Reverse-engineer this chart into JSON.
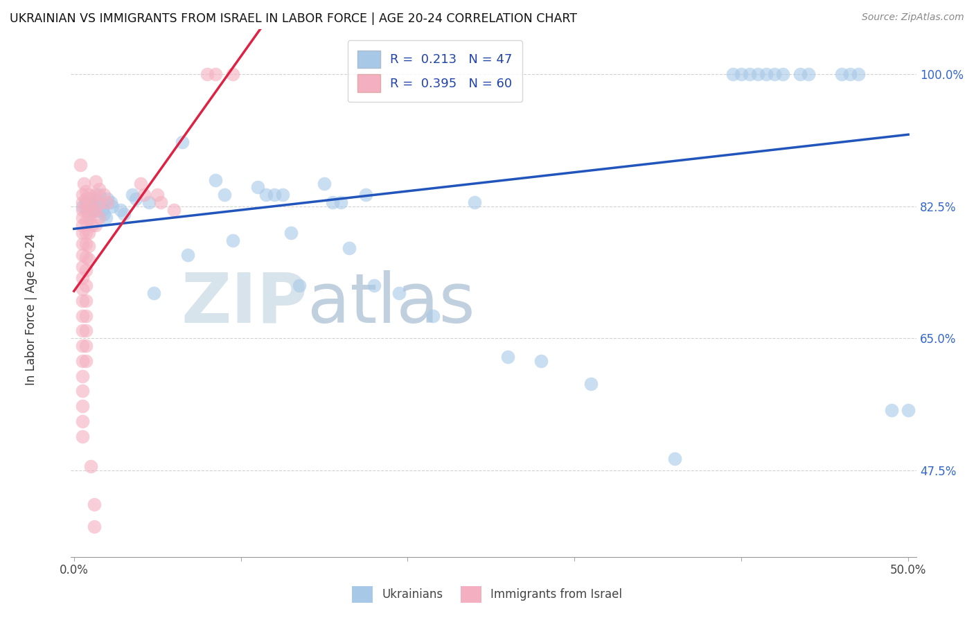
{
  "title": "UKRAINIAN VS IMMIGRANTS FROM ISRAEL IN LABOR FORCE | AGE 20-24 CORRELATION CHART",
  "source": "Source: ZipAtlas.com",
  "ylabel": "In Labor Force | Age 20-24",
  "yticks": [
    0.475,
    0.65,
    0.825,
    1.0
  ],
  "ytick_labels": [
    "47.5%",
    "65.0%",
    "82.5%",
    "100.0%"
  ],
  "xrange": [
    -0.002,
    0.505
  ],
  "yrange": [
    0.36,
    1.06
  ],
  "blue_color": "#a8c8e8",
  "pink_color": "#f4b0c0",
  "blue_line_color": "#2255bb",
  "pink_line_color": "#dd2244",
  "watermark_zip_color": "#d0dde8",
  "watermark_atlas_color": "#c8d8e8",
  "blue_scatter": [
    [
      0.005,
      0.825
    ],
    [
      0.007,
      0.83
    ],
    [
      0.008,
      0.82
    ],
    [
      0.009,
      0.815
    ],
    [
      0.01,
      0.835
    ],
    [
      0.011,
      0.828
    ],
    [
      0.012,
      0.822
    ],
    [
      0.013,
      0.818
    ],
    [
      0.014,
      0.832
    ],
    [
      0.015,
      0.84
    ],
    [
      0.016,
      0.826
    ],
    [
      0.017,
      0.82
    ],
    [
      0.018,
      0.815
    ],
    [
      0.019,
      0.81
    ],
    [
      0.02,
      0.835
    ],
    [
      0.022,
      0.83
    ],
    [
      0.023,
      0.825
    ],
    [
      0.028,
      0.82
    ],
    [
      0.03,
      0.815
    ],
    [
      0.035,
      0.84
    ],
    [
      0.037,
      0.835
    ],
    [
      0.045,
      0.83
    ],
    [
      0.048,
      0.71
    ],
    [
      0.065,
      0.91
    ],
    [
      0.068,
      0.76
    ],
    [
      0.085,
      0.86
    ],
    [
      0.09,
      0.84
    ],
    [
      0.095,
      0.78
    ],
    [
      0.11,
      0.85
    ],
    [
      0.115,
      0.84
    ],
    [
      0.12,
      0.84
    ],
    [
      0.125,
      0.84
    ],
    [
      0.13,
      0.79
    ],
    [
      0.135,
      0.72
    ],
    [
      0.15,
      0.855
    ],
    [
      0.155,
      0.83
    ],
    [
      0.16,
      0.83
    ],
    [
      0.165,
      0.77
    ],
    [
      0.175,
      0.84
    ],
    [
      0.18,
      0.72
    ],
    [
      0.195,
      0.71
    ],
    [
      0.215,
      0.68
    ],
    [
      0.24,
      0.83
    ],
    [
      0.26,
      0.625
    ],
    [
      0.28,
      0.62
    ],
    [
      0.31,
      0.59
    ],
    [
      0.36,
      0.49
    ],
    [
      0.395,
      1.0
    ],
    [
      0.4,
      1.0
    ],
    [
      0.405,
      1.0
    ],
    [
      0.41,
      1.0
    ],
    [
      0.415,
      1.0
    ],
    [
      0.42,
      1.0
    ],
    [
      0.425,
      1.0
    ],
    [
      0.435,
      1.0
    ],
    [
      0.44,
      1.0
    ],
    [
      0.46,
      1.0
    ],
    [
      0.465,
      1.0
    ],
    [
      0.47,
      1.0
    ],
    [
      0.49,
      0.555
    ],
    [
      0.5,
      0.555
    ]
  ],
  "pink_scatter": [
    [
      0.004,
      0.88
    ],
    [
      0.005,
      0.84
    ],
    [
      0.005,
      0.83
    ],
    [
      0.005,
      0.82
    ],
    [
      0.005,
      0.81
    ],
    [
      0.005,
      0.8
    ],
    [
      0.005,
      0.79
    ],
    [
      0.005,
      0.775
    ],
    [
      0.005,
      0.76
    ],
    [
      0.005,
      0.745
    ],
    [
      0.005,
      0.73
    ],
    [
      0.005,
      0.715
    ],
    [
      0.005,
      0.7
    ],
    [
      0.005,
      0.68
    ],
    [
      0.005,
      0.66
    ],
    [
      0.005,
      0.64
    ],
    [
      0.005,
      0.62
    ],
    [
      0.005,
      0.6
    ],
    [
      0.005,
      0.58
    ],
    [
      0.005,
      0.56
    ],
    [
      0.005,
      0.54
    ],
    [
      0.005,
      0.52
    ],
    [
      0.006,
      0.855
    ],
    [
      0.007,
      0.845
    ],
    [
      0.007,
      0.835
    ],
    [
      0.007,
      0.82
    ],
    [
      0.007,
      0.805
    ],
    [
      0.007,
      0.79
    ],
    [
      0.007,
      0.775
    ],
    [
      0.007,
      0.758
    ],
    [
      0.007,
      0.74
    ],
    [
      0.007,
      0.72
    ],
    [
      0.007,
      0.7
    ],
    [
      0.007,
      0.68
    ],
    [
      0.007,
      0.66
    ],
    [
      0.007,
      0.64
    ],
    [
      0.007,
      0.62
    ],
    [
      0.009,
      0.84
    ],
    [
      0.009,
      0.825
    ],
    [
      0.009,
      0.808
    ],
    [
      0.009,
      0.79
    ],
    [
      0.009,
      0.772
    ],
    [
      0.009,
      0.755
    ],
    [
      0.011,
      0.836
    ],
    [
      0.011,
      0.818
    ],
    [
      0.011,
      0.8
    ],
    [
      0.013,
      0.858
    ],
    [
      0.013,
      0.84
    ],
    [
      0.013,
      0.82
    ],
    [
      0.013,
      0.8
    ],
    [
      0.015,
      0.848
    ],
    [
      0.015,
      0.828
    ],
    [
      0.015,
      0.81
    ],
    [
      0.018,
      0.84
    ],
    [
      0.02,
      0.83
    ],
    [
      0.04,
      0.855
    ],
    [
      0.042,
      0.84
    ],
    [
      0.05,
      0.84
    ],
    [
      0.052,
      0.83
    ],
    [
      0.06,
      0.82
    ],
    [
      0.012,
      0.43
    ],
    [
      0.012,
      0.4
    ],
    [
      0.01,
      0.48
    ],
    [
      0.08,
      1.0
    ],
    [
      0.085,
      1.0
    ],
    [
      0.095,
      1.0
    ]
  ]
}
